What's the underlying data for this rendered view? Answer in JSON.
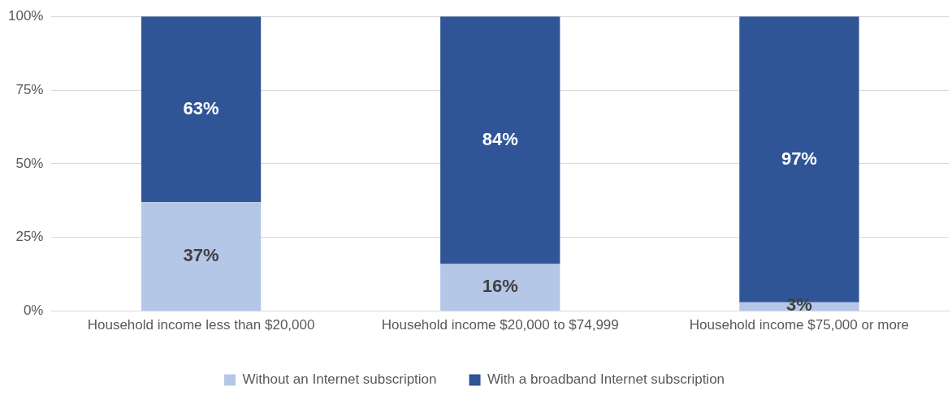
{
  "chart_data": {
    "type": "bar",
    "stacked": true,
    "categories": [
      "Household income less than $20,000",
      "Household income $20,000 to $74,999",
      "Household income $75,000 or more"
    ],
    "series": [
      {
        "name": "Without an Internet subscription",
        "color": "#b4c7e7",
        "values": [
          37,
          16,
          3
        ],
        "value_labels": [
          "37%",
          "16%",
          "3%"
        ]
      },
      {
        "name": "With a broadband Internet subscription",
        "color": "#2f5597",
        "values": [
          63,
          84,
          97
        ],
        "value_labels": [
          "63%",
          "84%",
          "97%"
        ]
      }
    ],
    "ylim": [
      0,
      100
    ],
    "yticks": [
      {
        "value": 0,
        "label": "0%"
      },
      {
        "value": 25,
        "label": "25%"
      },
      {
        "value": 50,
        "label": "50%"
      },
      {
        "value": 75,
        "label": "75%"
      },
      {
        "value": 100,
        "label": "100%"
      }
    ],
    "grid": "y",
    "legend": "bottom"
  }
}
